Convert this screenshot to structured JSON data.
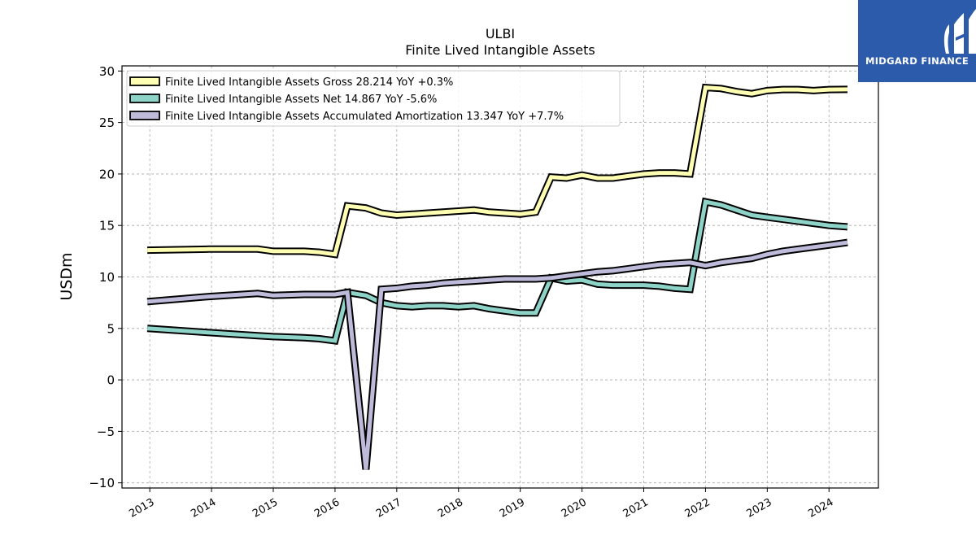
{
  "brand": {
    "name": "MIDGARD FINANCE",
    "logo_icon": "midgard-logo-icon",
    "bg_color": "#2d5bab"
  },
  "chart_data": {
    "type": "line",
    "title": "ULBI",
    "subtitle": "Finite Lived Intangible Assets",
    "xlabel": "",
    "ylabel": "USDm",
    "ylim": [
      -10.5,
      30.5
    ],
    "yticks": [
      -10,
      -5,
      0,
      5,
      10,
      15,
      20,
      25,
      30
    ],
    "ytick_labels": [
      "−10",
      "−5",
      "0",
      "5",
      "10",
      "15",
      "20",
      "25",
      "30"
    ],
    "xlim": [
      2012.55,
      2024.8
    ],
    "xticks": [
      2013,
      2014,
      2015,
      2016,
      2017,
      2018,
      2019,
      2020,
      2021,
      2022,
      2023,
      2024
    ],
    "xtick_labels": [
      "2013",
      "2014",
      "2015",
      "2016",
      "2017",
      "2018",
      "2019",
      "2020",
      "2021",
      "2022",
      "2023",
      "2024"
    ],
    "grid": true,
    "legend_position": "top-left",
    "series": [
      {
        "name": "Finite Lived Intangible Assets Gross",
        "legend_label": "Finite Lived Intangible Assets Gross  28.214 YoY +0.3%",
        "color": "#ffffb3",
        "x": [
          2012.96,
          2013.96,
          2014.75,
          2015.0,
          2015.5,
          2015.75,
          2016.0,
          2016.2,
          2016.5,
          2016.75,
          2017.0,
          2017.25,
          2017.5,
          2017.75,
          2018.0,
          2018.25,
          2018.5,
          2018.75,
          2019.0,
          2019.25,
          2019.5,
          2019.75,
          2020.0,
          2020.25,
          2020.5,
          2020.75,
          2021.0,
          2021.25,
          2021.5,
          2021.75,
          2022.0,
          2022.25,
          2022.5,
          2022.75,
          2023.0,
          2023.25,
          2023.5,
          2023.75,
          2024.0,
          2024.3
        ],
        "y": [
          12.6,
          12.7,
          12.7,
          12.5,
          12.5,
          12.4,
          12.2,
          16.9,
          16.7,
          16.2,
          16.0,
          16.1,
          16.2,
          16.3,
          16.4,
          16.5,
          16.3,
          16.2,
          16.1,
          16.3,
          19.7,
          19.6,
          19.9,
          19.6,
          19.6,
          19.8,
          20.0,
          20.1,
          20.1,
          20.0,
          28.4,
          28.3,
          28.0,
          27.8,
          28.1,
          28.2,
          28.2,
          28.1,
          28.2,
          28.214
        ]
      },
      {
        "name": "Finite Lived Intangible Assets Net",
        "legend_label": "Finite Lived Intangible Assets Net  14.867 YoY -5.6%",
        "color": "#8dd3c7",
        "x": [
          2012.96,
          2013.96,
          2014.75,
          2015.0,
          2015.5,
          2015.75,
          2016.0,
          2016.2,
          2016.5,
          2016.75,
          2017.0,
          2017.25,
          2017.5,
          2017.75,
          2018.0,
          2018.25,
          2018.5,
          2018.75,
          2019.0,
          2019.25,
          2019.5,
          2019.75,
          2020.0,
          2020.25,
          2020.5,
          2020.75,
          2021.0,
          2021.25,
          2021.5,
          2021.75,
          2022.0,
          2022.25,
          2022.5,
          2022.75,
          2023.0,
          2023.25,
          2023.5,
          2023.75,
          2024.0,
          2024.3
        ],
        "y": [
          5.0,
          4.6,
          4.3,
          4.2,
          4.1,
          4.0,
          3.8,
          8.5,
          8.2,
          7.5,
          7.2,
          7.1,
          7.2,
          7.2,
          7.1,
          7.2,
          6.9,
          6.7,
          6.5,
          6.5,
          9.9,
          9.6,
          9.7,
          9.3,
          9.2,
          9.2,
          9.2,
          9.1,
          8.9,
          8.8,
          17.3,
          17.0,
          16.5,
          16.0,
          15.8,
          15.6,
          15.4,
          15.2,
          15.0,
          14.867
        ]
      },
      {
        "name": "Finite Lived Intangible Assets Accumulated Amortization",
        "legend_label": "Finite Lived Intangible Assets Accumulated Amortization  13.347 YoY +7.7%",
        "color": "#bebada",
        "x": [
          2012.96,
          2013.96,
          2014.75,
          2015.0,
          2015.5,
          2015.75,
          2016.0,
          2016.2,
          2016.5,
          2016.75,
          2017.0,
          2017.25,
          2017.5,
          2017.75,
          2018.0,
          2018.25,
          2018.5,
          2018.75,
          2019.0,
          2019.25,
          2019.5,
          2019.75,
          2020.0,
          2020.25,
          2020.5,
          2020.75,
          2021.0,
          2021.25,
          2021.5,
          2021.75,
          2022.0,
          2022.25,
          2022.5,
          2022.75,
          2023.0,
          2023.25,
          2023.5,
          2023.75,
          2024.0,
          2024.3
        ],
        "y": [
          7.6,
          8.1,
          8.4,
          8.2,
          8.3,
          8.3,
          8.3,
          8.5,
          -8.7,
          8.8,
          8.9,
          9.1,
          9.2,
          9.4,
          9.5,
          9.6,
          9.7,
          9.8,
          9.8,
          9.8,
          9.9,
          10.1,
          10.3,
          10.5,
          10.6,
          10.8,
          11.0,
          11.2,
          11.3,
          11.4,
          11.1,
          11.4,
          11.6,
          11.8,
          12.2,
          12.5,
          12.7,
          12.9,
          13.1,
          13.347
        ]
      }
    ]
  }
}
